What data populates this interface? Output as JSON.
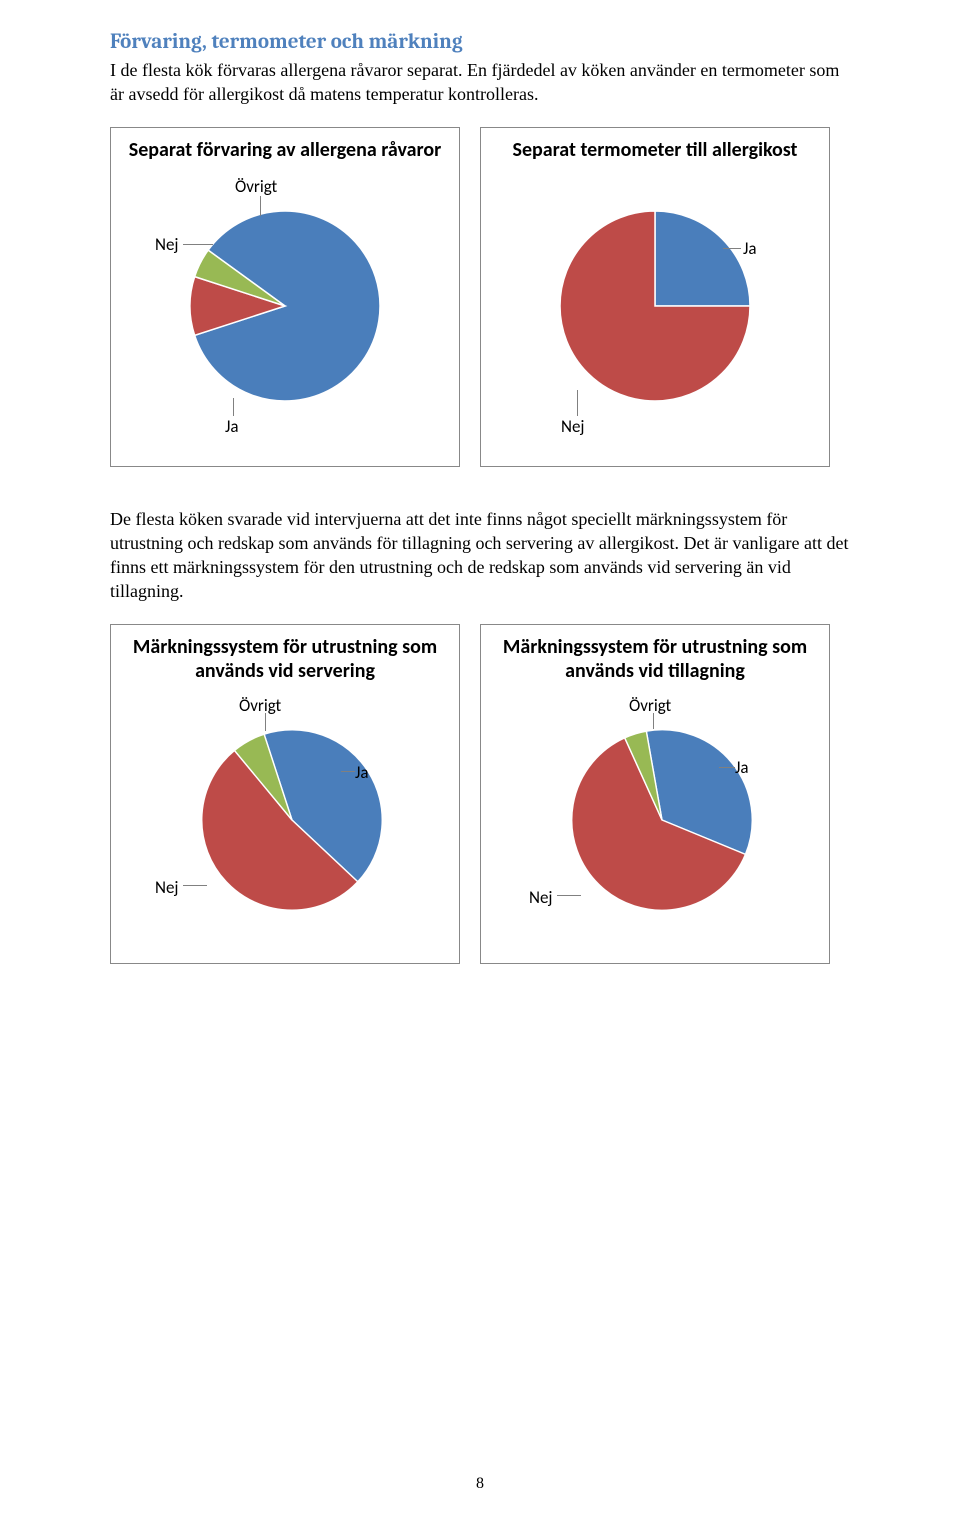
{
  "section_title": "Förvaring, termometer och märkning",
  "paragraph1": "I de flesta kök förvaras allergena råvaror separat. En fjärdedel av köken använder en termometer som är avsedd för allergikost då matens temperatur kontrolleras.",
  "paragraph2": "De flesta köken svarade vid intervjuerna att det inte finns något speciellt märkningssystem för utrustning och redskap som används för tillagning och servering av allergikost. Det är vanligare att det finns ett märkningssystem för den utrustning och de redskap som används vid servering än vid tillagning.",
  "page_number": "8",
  "colors": {
    "ja": "#4a7ebb",
    "nej": "#be4b48",
    "ovrigt": "#98b954"
  },
  "label_text": {
    "ja": "Ja",
    "nej": "Nej",
    "ovrigt": "Övrigt"
  },
  "charts": {
    "c1": {
      "title": "Separat förvaring av allergena råvaror",
      "slices": [
        {
          "key": "ja",
          "value": 85
        },
        {
          "key": "nej",
          "value": 10
        },
        {
          "key": "ovrigt",
          "value": 5
        }
      ]
    },
    "c2": {
      "title": "Separat termometer till allergikost",
      "slices": [
        {
          "key": "ja",
          "value": 25
        },
        {
          "key": "nej",
          "value": 75
        }
      ]
    },
    "c3": {
      "title": "Märkningssystem för utrustning som används vid servering",
      "slices": [
        {
          "key": "ja",
          "value": 42
        },
        {
          "key": "nej",
          "value": 52
        },
        {
          "key": "ovrigt",
          "value": 6
        }
      ]
    },
    "c4": {
      "title": "Märkningssystem för utrustning som används vid tillagning",
      "slices": [
        {
          "key": "ja",
          "value": 34
        },
        {
          "key": "nej",
          "value": 62
        },
        {
          "key": "ovrigt",
          "value": 4
        }
      ]
    }
  }
}
